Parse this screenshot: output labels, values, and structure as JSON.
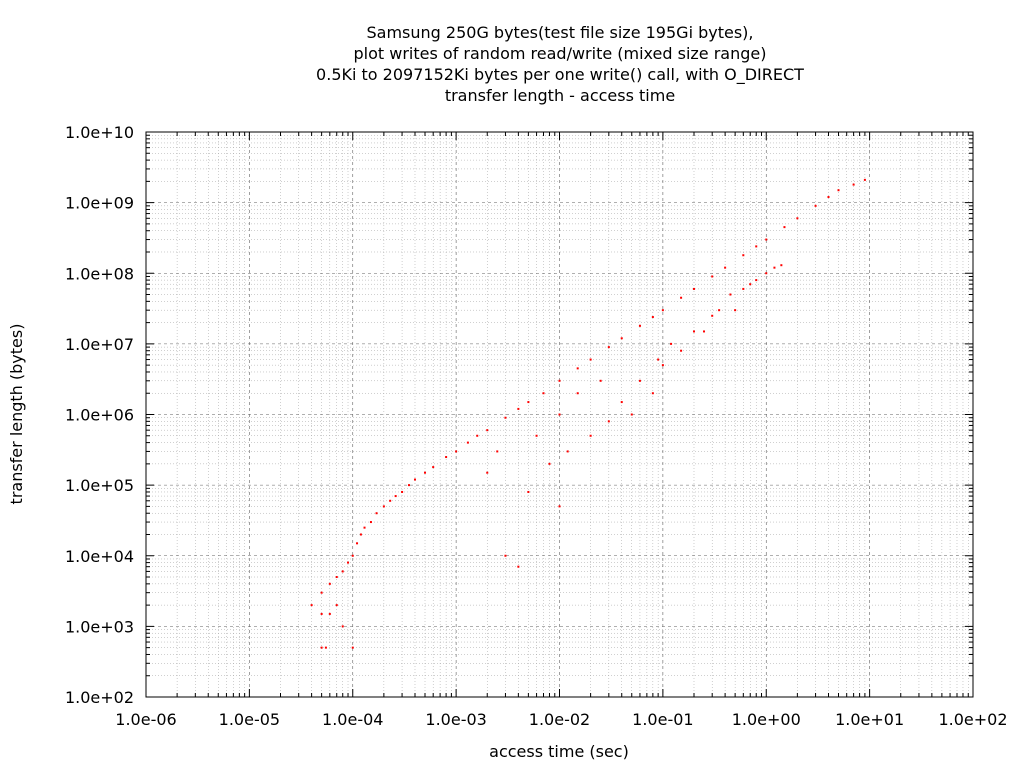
{
  "chart_data": {
    "type": "scatter",
    "title_lines": [
      "Samsung 250G bytes(test file size 195Gi bytes),",
      "plot writes of random read/write (mixed size range)",
      "0.5Ki to 2097152Ki bytes per one write() call, with O_DIRECT",
      "transfer length - access time"
    ],
    "xlabel": "access time (sec)",
    "ylabel": "transfer length (bytes)",
    "x_scale": "log",
    "y_scale": "log",
    "xlim": [
      1e-06,
      100
    ],
    "ylim": [
      100,
      10000000000.0
    ],
    "x_ticks": [
      "1.0e-06",
      "1.0e-05",
      "1.0e-04",
      "1.0e-03",
      "1.0e-02",
      "1.0e-01",
      "1.0e+00",
      "1.0e+01",
      "1.0e+02"
    ],
    "y_ticks": [
      "1.0e+02",
      "1.0e+03",
      "1.0e+04",
      "1.0e+05",
      "1.0e+06",
      "1.0e+07",
      "1.0e+08",
      "1.0e+09",
      "1.0e+10"
    ],
    "grid": true,
    "legend": "none",
    "point_color": "#ff0000",
    "series": [
      {
        "points": [
          [
            5e-05,
            500
          ],
          [
            5.5e-05,
            500
          ],
          [
            0.0001,
            500
          ],
          [
            4e-05,
            2000
          ],
          [
            5e-05,
            1500
          ],
          [
            6e-05,
            1500
          ],
          [
            7e-05,
            2000
          ],
          [
            8e-05,
            1000
          ],
          [
            5e-05,
            3000
          ],
          [
            6e-05,
            4000
          ],
          [
            7e-05,
            5000
          ],
          [
            8e-05,
            6000
          ],
          [
            9e-05,
            8000
          ],
          [
            0.0001,
            10000.0
          ],
          [
            0.00011,
            15000.0
          ],
          [
            0.00012,
            20000.0
          ],
          [
            0.00013,
            25000.0
          ],
          [
            0.00015,
            30000.0
          ],
          [
            0.00017,
            40000.0
          ],
          [
            0.0002,
            50000.0
          ],
          [
            0.00023,
            60000.0
          ],
          [
            0.00026,
            70000.0
          ],
          [
            0.0003,
            80000.0
          ],
          [
            0.00035,
            100000.0
          ],
          [
            0.0004,
            120000.0
          ],
          [
            0.0005,
            150000.0
          ],
          [
            0.0006,
            180000.0
          ],
          [
            0.0008,
            250000.0
          ],
          [
            0.001,
            300000.0
          ],
          [
            0.0013,
            400000.0
          ],
          [
            0.0016,
            500000.0
          ],
          [
            0.002,
            600000.0
          ],
          [
            0.003,
            900000.0
          ],
          [
            0.004,
            1200000.0
          ],
          [
            0.005,
            1500000.0
          ],
          [
            0.007,
            2000000.0
          ],
          [
            0.01,
            3000000.0
          ],
          [
            0.015,
            4500000.0
          ],
          [
            0.02,
            6000000.0
          ],
          [
            0.03,
            9000000.0
          ],
          [
            0.04,
            12000000.0
          ],
          [
            0.06,
            18000000.0
          ],
          [
            0.08,
            24000000.0
          ],
          [
            0.1,
            30000000.0
          ],
          [
            0.15,
            45000000.0
          ],
          [
            0.2,
            60000000.0
          ],
          [
            0.3,
            90000000.0
          ],
          [
            0.4,
            120000000.0
          ],
          [
            0.6,
            180000000.0
          ],
          [
            0.8,
            240000000.0
          ],
          [
            1,
            300000000.0
          ],
          [
            1.5,
            450000000.0
          ],
          [
            2,
            600000000.0
          ],
          [
            3,
            900000000.0
          ],
          [
            4,
            1200000000.0
          ],
          [
            5,
            1500000000.0
          ],
          [
            7,
            1800000000.0
          ],
          [
            9,
            2100000000.0
          ],
          [
            0.003,
            10000.0
          ],
          [
            0.004,
            7000
          ],
          [
            0.005,
            80000.0
          ],
          [
            0.008,
            200000.0
          ],
          [
            0.01,
            50000.0
          ],
          [
            0.012,
            300000.0
          ],
          [
            0.02,
            500000.0
          ],
          [
            0.03,
            800000.0
          ],
          [
            0.05,
            1000000.0
          ],
          [
            0.08,
            2000000.0
          ],
          [
            0.1,
            5000000.0
          ],
          [
            0.15,
            8000000.0
          ],
          [
            0.2,
            15000000.0
          ],
          [
            0.3,
            25000000.0
          ],
          [
            0.5,
            30000000.0
          ],
          [
            0.6,
            60000000.0
          ],
          [
            0.8,
            80000000.0
          ],
          [
            1,
            100000000.0
          ],
          [
            1.2,
            120000000.0
          ],
          [
            1.4,
            130000000.0
          ],
          [
            0.002,
            150000.0
          ],
          [
            0.0025,
            300000.0
          ],
          [
            0.006,
            500000.0
          ],
          [
            0.01,
            1000000.0
          ],
          [
            0.015,
            2000000.0
          ],
          [
            0.025,
            3000000.0
          ],
          [
            0.04,
            1500000.0
          ],
          [
            0.06,
            3000000.0
          ],
          [
            0.09,
            6000000.0
          ],
          [
            0.12,
            10000000.0
          ],
          [
            0.25,
            15000000.0
          ],
          [
            0.35,
            30000000.0
          ],
          [
            0.45,
            50000000.0
          ],
          [
            0.7,
            70000000.0
          ]
        ]
      }
    ]
  }
}
